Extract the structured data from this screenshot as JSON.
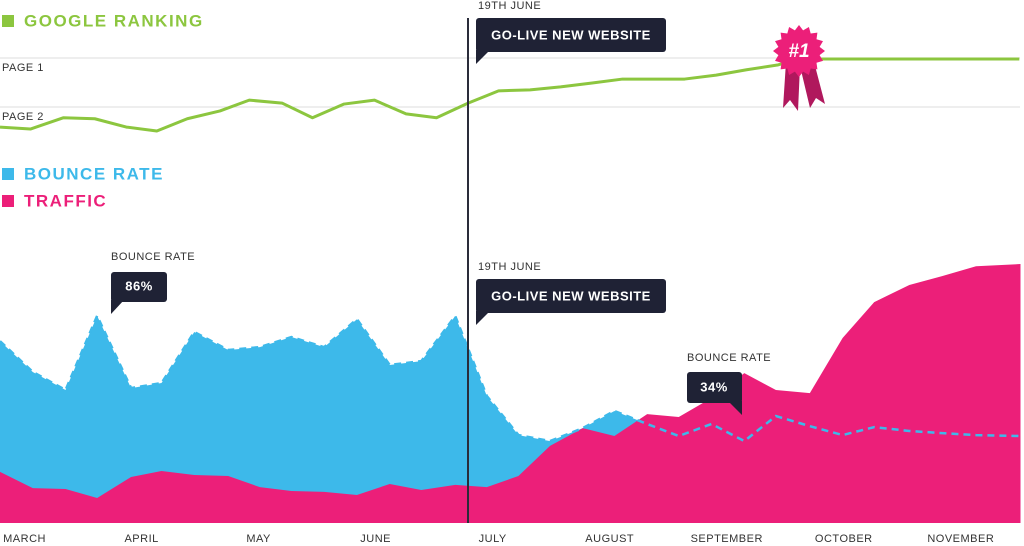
{
  "chart_data": [
    {
      "type": "line",
      "x": [
        -0.21,
        0.05,
        0.33,
        0.6,
        0.87,
        1.13,
        1.39,
        1.67,
        1.92,
        2.2,
        2.46,
        2.73,
        2.99,
        3.26,
        3.52,
        3.79,
        4.05,
        4.32,
        4.58,
        4.85,
        5.11,
        5.38,
        5.64,
        5.91,
        6.17,
        6.44,
        6.62,
        6.88,
        8.5
      ],
      "series": [
        {
          "name": "GOOGLE RANKING",
          "color": "#8cc63f",
          "values": [
            2.41,
            2.45,
            2.22,
            2.24,
            2.41,
            2.49,
            2.24,
            2.08,
            1.86,
            1.92,
            2.22,
            1.94,
            1.86,
            2.14,
            2.22,
            1.92,
            1.67,
            1.65,
            1.59,
            1.51,
            1.43,
            1.43,
            1.43,
            1.35,
            1.24,
            1.14,
            1.02,
            1.02,
            1.02
          ]
        }
      ],
      "xlim": [
        -0.21,
        8.54
      ],
      "ylim": [
        3,
        0
      ],
      "yticks": [
        {
          "value": 1,
          "label": "PAGE 1"
        },
        {
          "value": 2,
          "label": "PAGE 2"
        }
      ],
      "grid": true,
      "annotations": [
        {
          "title": "19TH JUNE",
          "text": "GO-LIVE NEW WEBSITE"
        }
      ],
      "badge": "#1"
    },
    {
      "type": "area",
      "x": [
        -0.21,
        0.07,
        0.35,
        0.62,
        0.91,
        1.17,
        1.45,
        1.74,
        2.01,
        2.28,
        2.56,
        2.84,
        3.12,
        3.39,
        3.68,
        3.95,
        4.22,
        4.49,
        4.77,
        5.04,
        5.32,
        5.59,
        5.87,
        6.15,
        6.42,
        6.71,
        6.99,
        7.26,
        7.56,
        7.84,
        8.13,
        8.51
      ],
      "series": [
        {
          "name": "BOUNCE RATE",
          "color": "#3db9ea",
          "values": [
            75.5,
            62.7,
            55.2,
            86,
            56,
            58.1,
            79.3,
            71.8,
            73,
            77.2,
            73,
            84.6,
            65.6,
            67.2,
            85.9,
            52.7,
            36.5,
            34,
            39.4,
            46.5,
            41.1,
            36.1,
            41.1,
            34,
            44.4,
            40.2,
            36.5,
            39.8,
            38.2,
            37.3,
            36.5,
            36.1
          ]
        },
        {
          "name": "TRAFFIC",
          "color": "#ec1f79",
          "values": [
            21.2,
            14.5,
            14.1,
            10.4,
            19.1,
            21.6,
            19.9,
            19.5,
            14.9,
            13.3,
            12.9,
            11.6,
            16.2,
            13.7,
            15.8,
            14.9,
            19.5,
            32,
            39.4,
            36.1,
            45.2,
            44,
            51.9,
            62.2,
            55.2,
            53.9,
            76.8,
            91.7,
            98.8,
            102.5,
            106.6,
            107.5
          ]
        }
      ],
      "xlim": [
        -0.21,
        8.54
      ],
      "ylim": [
        0,
        110
      ],
      "xticks": [
        {
          "value": 0,
          "label": "MARCH"
        },
        {
          "value": 1,
          "label": "APRIL"
        },
        {
          "value": 2,
          "label": "MAY"
        },
        {
          "value": 3,
          "label": "JUNE"
        },
        {
          "value": 4,
          "label": "JULY"
        },
        {
          "value": 5,
          "label": "AUGUST"
        },
        {
          "value": 6,
          "label": "SEPTEMBER"
        },
        {
          "value": 7,
          "label": "OCTOBER"
        },
        {
          "value": 8,
          "label": "NOVEMBER"
        }
      ],
      "annotations": [
        {
          "title": "19TH JUNE",
          "text": "GO-LIVE NEW WEBSITE"
        },
        {
          "title": "BOUNCE RATE",
          "text": "86%"
        },
        {
          "title": "BOUNCE RATE",
          "text": "34%"
        }
      ]
    }
  ]
}
